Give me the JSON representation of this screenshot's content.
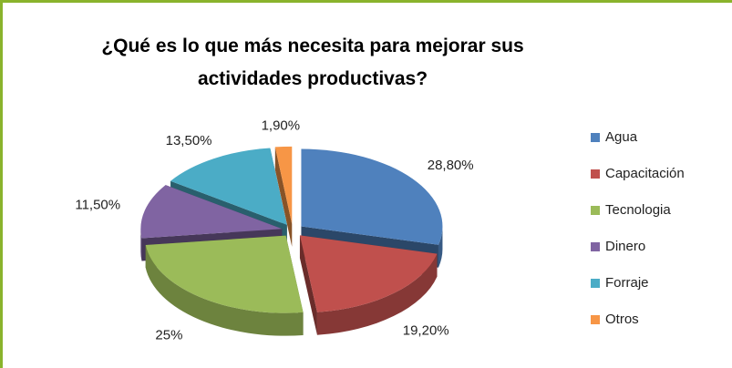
{
  "chart_data": {
    "type": "pie",
    "title": "¿Qué es lo que más necesita para mejorar sus actividades productivas?",
    "categories": [
      "Agua",
      "Capacitación",
      "Tecnologia",
      "Dinero",
      "Forraje",
      "Otros"
    ],
    "values": [
      28.8,
      19.2,
      25,
      11.5,
      13.5,
      1.9
    ],
    "value_labels": [
      "28,80%",
      "19,20%",
      "25%",
      "11,50%",
      "13,50%",
      "1,90%"
    ],
    "colors": [
      "#4f81bd",
      "#c0504d",
      "#9bbb59",
      "#8064a2",
      "#4bacc6",
      "#f79646"
    ],
    "legend": "right"
  }
}
